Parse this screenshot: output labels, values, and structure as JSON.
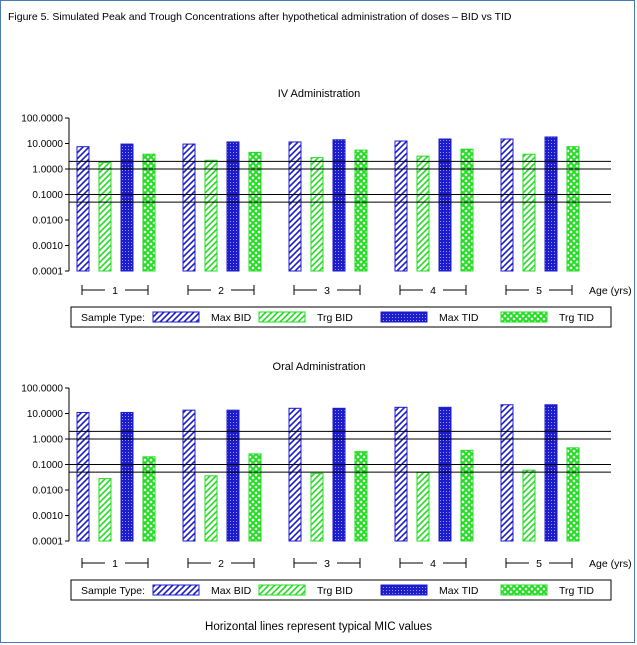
{
  "figure": {
    "title": "Figure 5.  Simulated Peak and Trough Concentrations after hypothetical administration of doses – BID vs TID",
    "footnote": "Horizontal lines represent typical MIC values"
  },
  "colors": {
    "blue": "#1c1ccc",
    "green": "#22dd22"
  },
  "chart_data": [
    {
      "type": "bar",
      "title": "IV Administration",
      "xlabel": "Age (yrs)",
      "ylabel": "",
      "yscale": "log",
      "ylim": [
        0.0001,
        100
      ],
      "yticks": [
        "100.0000",
        "10.0000",
        "1.0000",
        "0.1000",
        "0.0100",
        "0.0010",
        "0.0001"
      ],
      "categories": [
        "1",
        "2",
        "3",
        "4",
        "5"
      ],
      "reference_lines": [
        2,
        1,
        0.1,
        0.05
      ],
      "grid": false,
      "legend": {
        "title": "Sample Type:",
        "placement": "bottom"
      },
      "series": [
        {
          "name": "Max BID",
          "values": [
            7.5,
            9.5,
            11.5,
            12.5,
            15
          ],
          "style": "blue-diagonal"
        },
        {
          "name": "Trg BID",
          "values": [
            1.8,
            2.2,
            2.8,
            3.2,
            3.8
          ],
          "style": "green-diagonal"
        },
        {
          "name": "Max TID",
          "values": [
            9.5,
            11.5,
            14,
            15,
            18
          ],
          "style": "blue-dense"
        },
        {
          "name": "Trg TID",
          "values": [
            3.8,
            4.5,
            5.5,
            6,
            7.5
          ],
          "style": "green-cross"
        }
      ]
    },
    {
      "type": "bar",
      "title": "Oral Administration",
      "xlabel": "Age (yrs)",
      "ylabel": "",
      "yscale": "log",
      "ylim": [
        0.0001,
        100
      ],
      "yticks": [
        "100.0000",
        "10.0000",
        "1.0000",
        "0.1000",
        "0.0100",
        "0.0010",
        "0.0001"
      ],
      "categories": [
        "1",
        "2",
        "3",
        "4",
        "5"
      ],
      "reference_lines": [
        2,
        1,
        0.1,
        0.05
      ],
      "grid": false,
      "legend": {
        "title": "Sample Type:",
        "placement": "bottom"
      },
      "series": [
        {
          "name": "Max BID",
          "values": [
            11,
            13.5,
            16,
            17.5,
            22
          ],
          "style": "blue-diagonal"
        },
        {
          "name": "Trg BID",
          "values": [
            0.028,
            0.036,
            0.045,
            0.049,
            0.06
          ],
          "style": "green-diagonal"
        },
        {
          "name": "Max TID",
          "values": [
            11,
            13.5,
            16,
            17.5,
            22
          ],
          "style": "blue-dense"
        },
        {
          "name": "Trg TID",
          "values": [
            0.2,
            0.26,
            0.32,
            0.36,
            0.45
          ],
          "style": "green-cross"
        }
      ]
    }
  ]
}
